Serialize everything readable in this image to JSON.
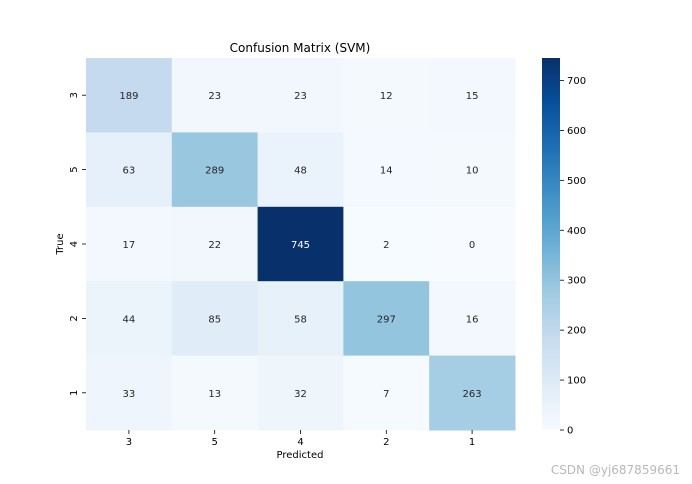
{
  "chart_data": {
    "type": "heatmap",
    "title": "Confusion Matrix (SVM)",
    "xlabel": "Predicted",
    "ylabel": "True",
    "x_categories": [
      "3",
      "5",
      "4",
      "2",
      "1"
    ],
    "y_categories": [
      "3",
      "5",
      "4",
      "2",
      "1"
    ],
    "values": [
      [
        189,
        23,
        23,
        12,
        15
      ],
      [
        63,
        289,
        48,
        14,
        10
      ],
      [
        17,
        22,
        745,
        2,
        0
      ],
      [
        44,
        85,
        58,
        297,
        16
      ],
      [
        33,
        13,
        32,
        7,
        263
      ]
    ],
    "colormap": "Blues",
    "colorbar": {
      "min": 0,
      "max": 745,
      "ticks": [
        0,
        100,
        200,
        300,
        400,
        500,
        600,
        700
      ]
    }
  },
  "watermark": "CSDN @yj687859661"
}
